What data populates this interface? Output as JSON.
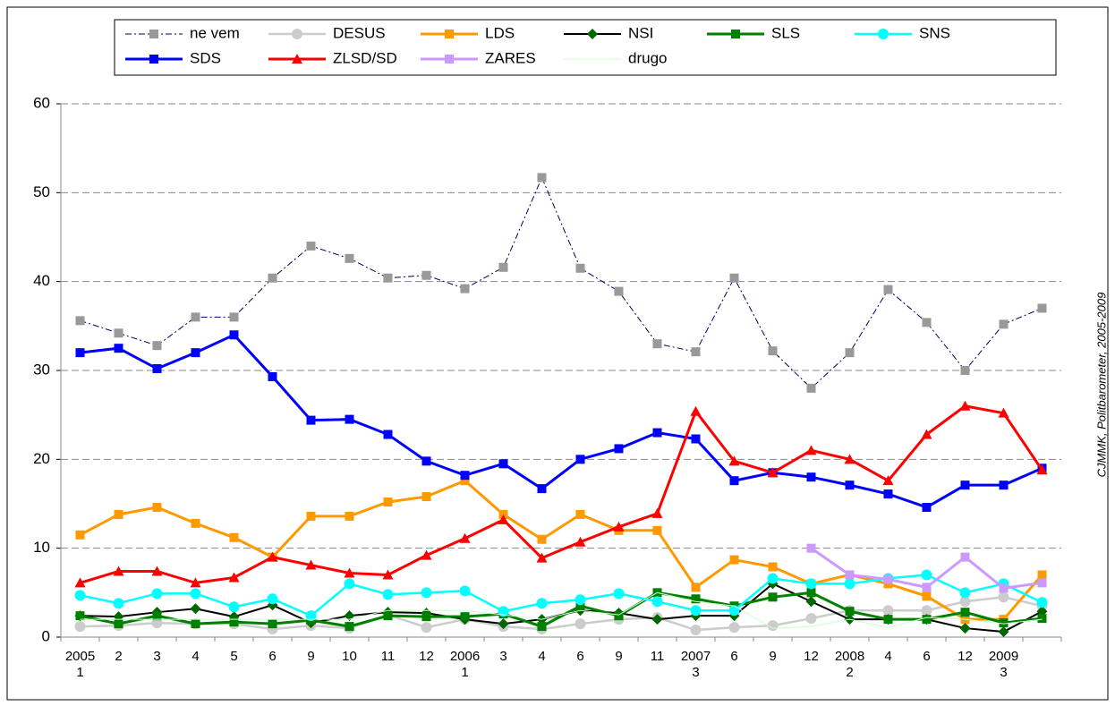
{
  "chart_data": {
    "type": "line",
    "source": "CJMMK, Politbarometer, 2005-2009",
    "categories": [
      [
        "2005",
        "1"
      ],
      [
        "2"
      ],
      [
        "3"
      ],
      [
        "4"
      ],
      [
        "5"
      ],
      [
        "6"
      ],
      [
        "9"
      ],
      [
        "10"
      ],
      [
        "11"
      ],
      [
        "12"
      ],
      [
        "2006",
        "1"
      ],
      [
        "3"
      ],
      [
        "4"
      ],
      [
        "6"
      ],
      [
        "9"
      ],
      [
        "11"
      ],
      [
        "2007",
        "3"
      ],
      [
        "6"
      ],
      [
        "9"
      ],
      [
        "12"
      ],
      [
        "2008",
        "2"
      ],
      [
        "4"
      ],
      [
        "6"
      ],
      [
        "12"
      ],
      [
        "2009",
        "3"
      ],
      null
    ],
    "ylim": [
      0,
      60
    ],
    "yticks": [
      0,
      10,
      20,
      30,
      40,
      50,
      60
    ],
    "grid": true,
    "series": [
      {
        "name": "ne vem",
        "color": "#000066",
        "marker": "square",
        "marker_color": "#999999",
        "dash": "dashdot",
        "width": 1,
        "values": [
          35.6,
          34.2,
          32.8,
          36,
          36,
          40.4,
          44,
          42.6,
          40.4,
          40.7,
          39.2,
          41.6,
          51.7,
          41.5,
          38.9,
          33,
          32.1,
          40.4,
          32.2,
          28,
          32,
          39.1,
          35.4,
          30,
          35.2,
          37
        ]
      },
      {
        "name": "DESUS",
        "color": "#cccccc",
        "marker": "circle",
        "marker_color": "#cccccc",
        "dash": "solid",
        "width": 2.5,
        "values": [
          1.2,
          1.3,
          1.6,
          1.5,
          1.5,
          0.9,
          1.3,
          1,
          2.5,
          1.1,
          2,
          1.2,
          0.9,
          1.5,
          2,
          2.2,
          0.8,
          1.1,
          1.3,
          2.1,
          3,
          3,
          3,
          4,
          4.5,
          3.5
        ]
      },
      {
        "name": "LDS",
        "color": "#ff9900",
        "marker": "square",
        "marker_color": "#ff9900",
        "dash": "solid",
        "width": 3,
        "values": [
          11.5,
          13.8,
          14.6,
          12.8,
          11.2,
          9,
          13.6,
          13.6,
          15.2,
          15.8,
          17.6,
          13.8,
          11,
          13.8,
          12,
          12,
          5.6,
          8.7,
          7.9,
          6,
          7,
          6,
          4.6,
          2,
          2,
          7
        ]
      },
      {
        "name": "NSI",
        "color": "#000000",
        "marker": "diamond",
        "marker_color": "#006600",
        "dash": "solid",
        "width": 2,
        "values": [
          2.4,
          2.3,
          2.8,
          3.2,
          2.3,
          3.6,
          1.6,
          2.4,
          2.8,
          2.7,
          2,
          1.5,
          2,
          3,
          2.7,
          2,
          2.4,
          2.4,
          6,
          4,
          2,
          2,
          2,
          1,
          0.6,
          2.9
        ]
      },
      {
        "name": "SLS",
        "color": "#008000",
        "marker": "square",
        "marker_color": "#008000",
        "dash": "solid",
        "width": 3,
        "values": [
          2.4,
          1.5,
          2.4,
          1.5,
          1.7,
          1.5,
          1.9,
          1.2,
          2.4,
          2.3,
          2.3,
          2.6,
          1.2,
          3.5,
          2.4,
          5,
          4.3,
          3.5,
          4.5,
          5,
          2.9,
          2,
          2,
          2.8,
          1.6,
          2.1
        ]
      },
      {
        "name": "SNS",
        "color": "#00ffff",
        "marker": "circle",
        "marker_color": "#00ffff",
        "dash": "solid",
        "width": 2.5,
        "values": [
          4.7,
          3.8,
          4.9,
          4.9,
          3.4,
          4.3,
          2.4,
          6,
          4.8,
          5,
          5.2,
          2.9,
          3.8,
          4.2,
          4.9,
          4,
          3,
          3,
          6.6,
          6,
          6,
          6.6,
          7,
          5,
          6,
          3.9
        ]
      },
      {
        "name": "SDS",
        "color": "#0000ff",
        "marker": "square",
        "marker_color": "#0000ff",
        "dash": "solid",
        "width": 3,
        "values": [
          32,
          32.5,
          30.2,
          32,
          34,
          29.3,
          24.4,
          24.5,
          22.8,
          19.8,
          18.2,
          19.5,
          16.7,
          20,
          21.2,
          23,
          22.3,
          17.6,
          18.5,
          18,
          17.1,
          16.1,
          14.6,
          17.1,
          17.1,
          19
        ]
      },
      {
        "name": "ZLSD/SD",
        "color": "#ff0000",
        "marker": "triangle",
        "marker_color": "#ff0000",
        "dash": "solid",
        "width": 3,
        "values": [
          6.1,
          7.4,
          7.4,
          6.1,
          6.7,
          9,
          8.1,
          7.2,
          7,
          9.2,
          11.1,
          13.2,
          8.9,
          10.7,
          12.4,
          13.9,
          25.4,
          19.8,
          18.5,
          21,
          20,
          17.6,
          22.8,
          26,
          25.2,
          18.8
        ]
      },
      {
        "name": "ZARES",
        "color": "#cc99ff",
        "marker": "square",
        "marker_color": "#cc99ff",
        "dash": "solid",
        "width": 3,
        "values": [
          null,
          null,
          null,
          null,
          null,
          null,
          null,
          null,
          null,
          null,
          null,
          null,
          null,
          null,
          null,
          null,
          null,
          null,
          null,
          10,
          7,
          6.5,
          5.6,
          9,
          5.5,
          6.1
        ]
      },
      {
        "name": "drugo",
        "color": "#ccffcc",
        "marker": "none",
        "marker_color": "#ccffcc",
        "dash": "solid",
        "width": 1,
        "values": [
          2,
          2,
          2,
          2,
          2,
          2,
          2,
          2,
          3,
          3,
          3,
          2.5,
          2,
          3,
          2.5,
          5,
          4,
          3.5,
          1,
          1.2,
          2,
          1.1,
          2.2,
          2,
          1.5,
          2
        ]
      }
    ]
  }
}
